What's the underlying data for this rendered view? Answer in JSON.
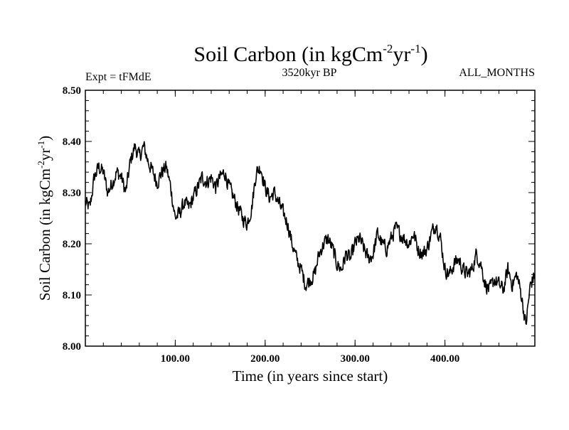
{
  "chart_data": {
    "type": "line",
    "title": {
      "base": "Soil Carbon (in kgCm",
      "sup1": "-2",
      "mid": "yr",
      "sup2": "-1",
      "end": ")"
    },
    "left_header": "Expt = tFMdE",
    "center_header": "3520kyr BP",
    "right_header": "ALL_MONTHS",
    "xlabel": "Time (in years since start)",
    "ylabel": {
      "base": "Soil Carbon (in kgCm",
      "sup1": "-2",
      "mid": "yr",
      "sup2": "-1",
      "end": ")"
    },
    "xlim": [
      0,
      500
    ],
    "ylim": [
      8.0,
      8.5
    ],
    "xticks": [
      100,
      200,
      300,
      400
    ],
    "xtick_labels": [
      "100.00",
      "200.00",
      "300.00",
      "400.00"
    ],
    "yticks": [
      8.0,
      8.1,
      8.2,
      8.3,
      8.4,
      8.5
    ],
    "ytick_labels": [
      "8.00",
      "8.10",
      "8.20",
      "8.30",
      "8.40",
      "8.50"
    ],
    "series": [
      {
        "name": "Soil Carbon",
        "color": "#000000",
        "x": [
          0,
          5,
          10,
          15,
          20,
          25,
          30,
          35,
          40,
          45,
          50,
          55,
          60,
          65,
          70,
          75,
          80,
          85,
          90,
          95,
          100,
          105,
          110,
          115,
          120,
          125,
          130,
          135,
          140,
          145,
          150,
          155,
          160,
          165,
          170,
          175,
          180,
          185,
          190,
          195,
          200,
          205,
          210,
          215,
          220,
          225,
          230,
          235,
          240,
          245,
          250,
          255,
          260,
          265,
          270,
          275,
          280,
          285,
          290,
          295,
          300,
          305,
          310,
          315,
          320,
          325,
          330,
          335,
          340,
          345,
          350,
          355,
          360,
          365,
          370,
          375,
          380,
          385,
          390,
          395,
          400,
          405,
          410,
          415,
          420,
          425,
          430,
          435,
          440,
          445,
          450,
          455,
          460,
          465,
          470,
          475,
          480,
          485,
          490,
          495,
          500
        ],
        "y": [
          8.28,
          8.27,
          8.33,
          8.35,
          8.34,
          8.3,
          8.32,
          8.34,
          8.33,
          8.3,
          8.36,
          8.39,
          8.37,
          8.39,
          8.36,
          8.34,
          8.32,
          8.34,
          8.35,
          8.31,
          8.25,
          8.26,
          8.28,
          8.27,
          8.29,
          8.31,
          8.33,
          8.32,
          8.33,
          8.31,
          8.33,
          8.34,
          8.31,
          8.29,
          8.27,
          8.25,
          8.24,
          8.27,
          8.34,
          8.35,
          8.31,
          8.29,
          8.3,
          8.28,
          8.26,
          8.24,
          8.2,
          8.17,
          8.15,
          8.12,
          8.13,
          8.14,
          8.18,
          8.2,
          8.21,
          8.19,
          8.16,
          8.15,
          8.18,
          8.17,
          8.2,
          8.21,
          8.19,
          8.17,
          8.18,
          8.22,
          8.2,
          8.19,
          8.21,
          8.23,
          8.22,
          8.21,
          8.2,
          8.22,
          8.19,
          8.18,
          8.19,
          8.22,
          8.24,
          8.21,
          8.15,
          8.14,
          8.16,
          8.17,
          8.15,
          8.14,
          8.15,
          8.18,
          8.16,
          8.12,
          8.11,
          8.13,
          8.12,
          8.11,
          8.15,
          8.12,
          8.14,
          8.1,
          8.04,
          8.12,
          8.14
        ]
      }
    ]
  }
}
